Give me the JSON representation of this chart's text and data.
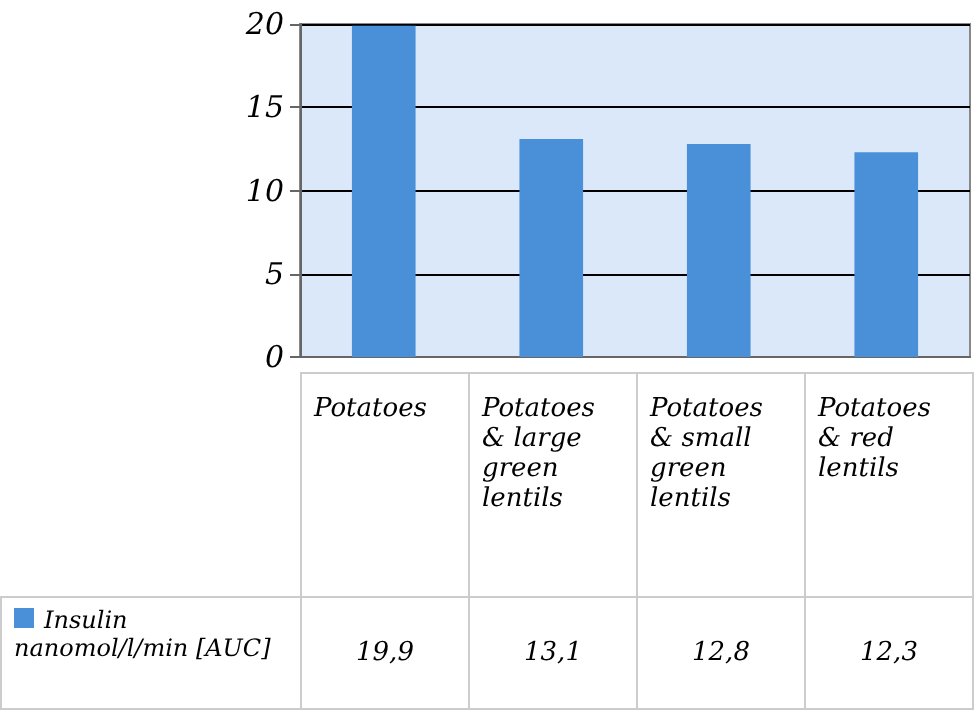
{
  "chart_data": {
    "type": "bar",
    "categories": [
      "Potatoes",
      "Potatoes & large green lentils",
      "Potatoes & small green lentils",
      "Potatoes & red lentils"
    ],
    "series": [
      {
        "name": "Insulin nanomol/l/min [AUC]",
        "color": "#4a90d9",
        "values": [
          19.9,
          13.1,
          12.8,
          12.3
        ],
        "value_labels": [
          "19,9",
          "13,1",
          "12,8",
          "12,3"
        ]
      }
    ],
    "ylim": [
      0,
      20
    ],
    "yticks": [
      0,
      5,
      10,
      15,
      20
    ],
    "grid": "y",
    "legend": "bottom left"
  }
}
